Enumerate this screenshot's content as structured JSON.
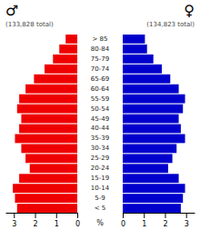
{
  "chart_data": {
    "type": "bar",
    "orientation": "horizontal",
    "categories": [
      "> 85",
      "80-84",
      "75-79",
      "70-74",
      "65-69",
      "60-64",
      "55-59",
      "50-54",
      "45-49",
      "40-44",
      "35-39",
      "30-34",
      "25-29",
      "20-24",
      "15-19",
      "10-14",
      "5-9",
      "< 5"
    ],
    "series": [
      {
        "name": "♂",
        "color": "#ee0000",
        "values": [
          0.55,
          0.85,
          1.15,
          1.55,
          2.05,
          2.45,
          2.75,
          2.85,
          2.65,
          2.75,
          2.95,
          2.65,
          2.45,
          2.25,
          2.75,
          3.05,
          2.95,
          2.85
        ]
      },
      {
        "name": "♀",
        "color": "#0000cc",
        "values": [
          1.05,
          1.15,
          1.45,
          1.85,
          2.25,
          2.65,
          2.95,
          2.85,
          2.65,
          2.75,
          2.95,
          2.55,
          2.35,
          2.15,
          2.65,
          2.95,
          2.85,
          2.75
        ]
      }
    ],
    "annotations": [
      "(133,828 total)",
      "(134,823 total)"
    ],
    "xlabel": "%",
    "xlim": [
      0,
      3.4
    ],
    "xticks": [
      0,
      1,
      2,
      3
    ]
  }
}
